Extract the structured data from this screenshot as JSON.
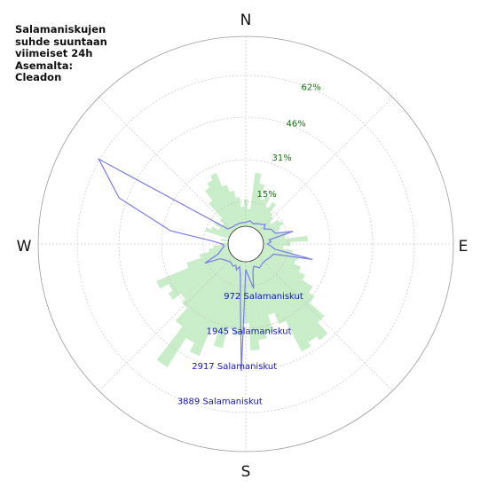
{
  "title": "Salamaniskujen\nsuhde suuntaan\nviimeiset 24h\nAsemalta:\nCleadon",
  "colors": {
    "bars": "#c8edc8",
    "line": "#7b7be8",
    "grid": "#9a9a9a",
    "pct_text": "#1a6e1a",
    "count_text": "#1414c8"
  },
  "chart_data": {
    "type": "polar-rose",
    "compass": [
      "N",
      "E",
      "S",
      "W"
    ],
    "pct_rings": [
      {
        "label": "15%",
        "value": 15
      },
      {
        "label": "31%",
        "value": 31
      },
      {
        "label": "46%",
        "value": 46
      },
      {
        "label": "62%",
        "value": 62
      }
    ],
    "count_rings": [
      {
        "label": "972 Salamaniskut",
        "value": 972
      },
      {
        "label": "1945 Salamaniskut",
        "value": 1945
      },
      {
        "label": "2917 Salamaniskut",
        "value": 2917
      },
      {
        "label": "3889 Salamaniskut",
        "value": 3889
      }
    ],
    "bars_pct": [
      {
        "bearing": 0,
        "value": 11
      },
      {
        "bearing": 5,
        "value": 7
      },
      {
        "bearing": 10,
        "value": 22
      },
      {
        "bearing": 15,
        "value": 18
      },
      {
        "bearing": 20,
        "value": 12
      },
      {
        "bearing": 25,
        "value": 14
      },
      {
        "bearing": 30,
        "value": 10
      },
      {
        "bearing": 35,
        "value": 13
      },
      {
        "bearing": 40,
        "value": 9
      },
      {
        "bearing": 45,
        "value": 8
      },
      {
        "bearing": 50,
        "value": 6
      },
      {
        "bearing": 55,
        "value": 9
      },
      {
        "bearing": 60,
        "value": 10
      },
      {
        "bearing": 65,
        "value": 8
      },
      {
        "bearing": 70,
        "value": 7
      },
      {
        "bearing": 75,
        "value": 10
      },
      {
        "bearing": 80,
        "value": 9
      },
      {
        "bearing": 85,
        "value": 18
      },
      {
        "bearing": 90,
        "value": 11
      },
      {
        "bearing": 95,
        "value": 8
      },
      {
        "bearing": 100,
        "value": 12
      },
      {
        "bearing": 105,
        "value": 15
      },
      {
        "bearing": 110,
        "value": 14
      },
      {
        "bearing": 115,
        "value": 17
      },
      {
        "bearing": 120,
        "value": 20
      },
      {
        "bearing": 125,
        "value": 25
      },
      {
        "bearing": 130,
        "value": 28
      },
      {
        "bearing": 135,
        "value": 36
      },
      {
        "bearing": 140,
        "value": 42
      },
      {
        "bearing": 145,
        "value": 40
      },
      {
        "bearing": 150,
        "value": 42
      },
      {
        "bearing": 155,
        "value": 28
      },
      {
        "bearing": 160,
        "value": 23
      },
      {
        "bearing": 165,
        "value": 30
      },
      {
        "bearing": 170,
        "value": 32
      },
      {
        "bearing": 175,
        "value": 36
      },
      {
        "bearing": 180,
        "value": 25
      },
      {
        "bearing": 185,
        "value": 30
      },
      {
        "bearing": 190,
        "value": 28
      },
      {
        "bearing": 195,
        "value": 36
      },
      {
        "bearing": 200,
        "value": 30
      },
      {
        "bearing": 205,
        "value": 42
      },
      {
        "bearing": 210,
        "value": 38
      },
      {
        "bearing": 215,
        "value": 52
      },
      {
        "bearing": 220,
        "value": 35
      },
      {
        "bearing": 225,
        "value": 28
      },
      {
        "bearing": 230,
        "value": 26
      },
      {
        "bearing": 235,
        "value": 30
      },
      {
        "bearing": 240,
        "value": 28
      },
      {
        "bearing": 245,
        "value": 32
      },
      {
        "bearing": 250,
        "value": 18
      },
      {
        "bearing": 255,
        "value": 12
      },
      {
        "bearing": 260,
        "value": 8
      },
      {
        "bearing": 265,
        "value": 6
      },
      {
        "bearing": 270,
        "value": 3
      },
      {
        "bearing": 280,
        "value": 3
      },
      {
        "bearing": 290,
        "value": 10
      },
      {
        "bearing": 295,
        "value": 8
      },
      {
        "bearing": 300,
        "value": 5
      },
      {
        "bearing": 305,
        "value": 8
      },
      {
        "bearing": 310,
        "value": 5
      },
      {
        "bearing": 315,
        "value": 7
      },
      {
        "bearing": 320,
        "value": 15
      },
      {
        "bearing": 325,
        "value": 20
      },
      {
        "bearing": 330,
        "value": 22
      },
      {
        "bearing": 335,
        "value": 24
      },
      {
        "bearing": 340,
        "value": 18
      },
      {
        "bearing": 345,
        "value": 15
      },
      {
        "bearing": 350,
        "value": 12
      },
      {
        "bearing": 355,
        "value": 8
      }
    ],
    "line_counts": [
      {
        "bearing": 0,
        "value": 100
      },
      {
        "bearing": 10,
        "value": 150
      },
      {
        "bearing": 20,
        "value": 100
      },
      {
        "bearing": 30,
        "value": 150
      },
      {
        "bearing": 40,
        "value": 200
      },
      {
        "bearing": 45,
        "value": 250
      },
      {
        "bearing": 50,
        "value": 150
      },
      {
        "bearing": 60,
        "value": 300
      },
      {
        "bearing": 70,
        "value": 350
      },
      {
        "bearing": 75,
        "value": 800
      },
      {
        "bearing": 80,
        "value": 150
      },
      {
        "bearing": 85,
        "value": 200
      },
      {
        "bearing": 90,
        "value": 100
      },
      {
        "bearing": 95,
        "value": 200
      },
      {
        "bearing": 100,
        "value": 300
      },
      {
        "bearing": 103,
        "value": 1300
      },
      {
        "bearing": 110,
        "value": 300
      },
      {
        "bearing": 120,
        "value": 250
      },
      {
        "bearing": 130,
        "value": 200
      },
      {
        "bearing": 140,
        "value": 200
      },
      {
        "bearing": 150,
        "value": 250
      },
      {
        "bearing": 160,
        "value": 150
      },
      {
        "bearing": 165,
        "value": 250
      },
      {
        "bearing": 170,
        "value": 700
      },
      {
        "bearing": 180,
        "value": 200
      },
      {
        "bearing": 182,
        "value": 2800
      },
      {
        "bearing": 185,
        "value": 1100
      },
      {
        "bearing": 190,
        "value": 350
      },
      {
        "bearing": 195,
        "value": 150
      },
      {
        "bearing": 200,
        "value": 250
      },
      {
        "bearing": 205,
        "value": 150
      },
      {
        "bearing": 210,
        "value": 200
      },
      {
        "bearing": 220,
        "value": 150
      },
      {
        "bearing": 230,
        "value": 200
      },
      {
        "bearing": 240,
        "value": 300
      },
      {
        "bearing": 245,
        "value": 700
      },
      {
        "bearing": 250,
        "value": 300
      },
      {
        "bearing": 260,
        "value": 150
      },
      {
        "bearing": 265,
        "value": 100
      },
      {
        "bearing": 270,
        "value": 150
      },
      {
        "bearing": 275,
        "value": 400
      },
      {
        "bearing": 280,
        "value": 1500
      },
      {
        "bearing": 290,
        "value": 3000
      },
      {
        "bearing": 300,
        "value": 3889
      },
      {
        "bearing": 310,
        "value": 150
      },
      {
        "bearing": 320,
        "value": 100
      },
      {
        "bearing": 330,
        "value": 100
      },
      {
        "bearing": 340,
        "value": 100
      },
      {
        "bearing": 350,
        "value": 100
      }
    ]
  }
}
